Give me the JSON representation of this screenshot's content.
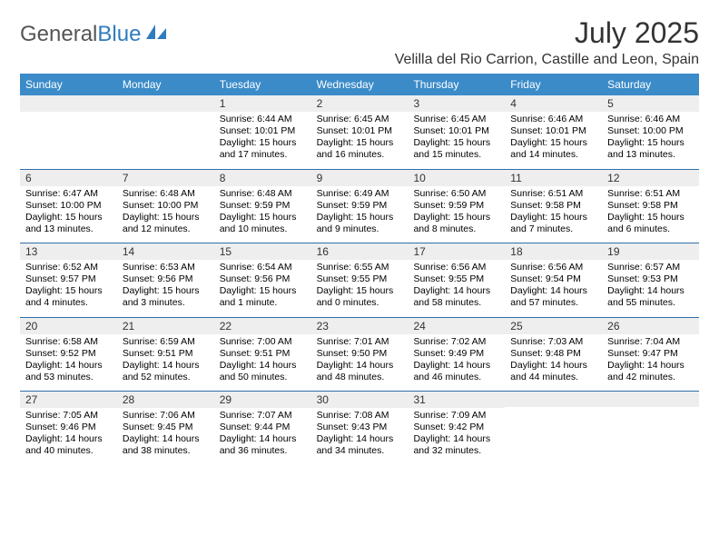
{
  "header": {
    "logo_general": "General",
    "logo_blue": "Blue",
    "month_title": "July 2025",
    "location": "Velilla del Rio Carrion, Castille and Leon, Spain"
  },
  "colors": {
    "header_bar": "#3b8bc9",
    "row_divider": "#2f6fa8",
    "daynum_bg": "#eeeeee",
    "logo_accent": "#2f7bbf"
  },
  "weekdays": [
    "Sunday",
    "Monday",
    "Tuesday",
    "Wednesday",
    "Thursday",
    "Friday",
    "Saturday"
  ],
  "weeks": [
    [
      {
        "n": "",
        "sunrise": "",
        "sunset": "",
        "day1": "",
        "day2": ""
      },
      {
        "n": "",
        "sunrise": "",
        "sunset": "",
        "day1": "",
        "day2": ""
      },
      {
        "n": "1",
        "sunrise": "Sunrise: 6:44 AM",
        "sunset": "Sunset: 10:01 PM",
        "day1": "Daylight: 15 hours",
        "day2": "and 17 minutes."
      },
      {
        "n": "2",
        "sunrise": "Sunrise: 6:45 AM",
        "sunset": "Sunset: 10:01 PM",
        "day1": "Daylight: 15 hours",
        "day2": "and 16 minutes."
      },
      {
        "n": "3",
        "sunrise": "Sunrise: 6:45 AM",
        "sunset": "Sunset: 10:01 PM",
        "day1": "Daylight: 15 hours",
        "day2": "and 15 minutes."
      },
      {
        "n": "4",
        "sunrise": "Sunrise: 6:46 AM",
        "sunset": "Sunset: 10:01 PM",
        "day1": "Daylight: 15 hours",
        "day2": "and 14 minutes."
      },
      {
        "n": "5",
        "sunrise": "Sunrise: 6:46 AM",
        "sunset": "Sunset: 10:00 PM",
        "day1": "Daylight: 15 hours",
        "day2": "and 13 minutes."
      }
    ],
    [
      {
        "n": "6",
        "sunrise": "Sunrise: 6:47 AM",
        "sunset": "Sunset: 10:00 PM",
        "day1": "Daylight: 15 hours",
        "day2": "and 13 minutes."
      },
      {
        "n": "7",
        "sunrise": "Sunrise: 6:48 AM",
        "sunset": "Sunset: 10:00 PM",
        "day1": "Daylight: 15 hours",
        "day2": "and 12 minutes."
      },
      {
        "n": "8",
        "sunrise": "Sunrise: 6:48 AM",
        "sunset": "Sunset: 9:59 PM",
        "day1": "Daylight: 15 hours",
        "day2": "and 10 minutes."
      },
      {
        "n": "9",
        "sunrise": "Sunrise: 6:49 AM",
        "sunset": "Sunset: 9:59 PM",
        "day1": "Daylight: 15 hours",
        "day2": "and 9 minutes."
      },
      {
        "n": "10",
        "sunrise": "Sunrise: 6:50 AM",
        "sunset": "Sunset: 9:59 PM",
        "day1": "Daylight: 15 hours",
        "day2": "and 8 minutes."
      },
      {
        "n": "11",
        "sunrise": "Sunrise: 6:51 AM",
        "sunset": "Sunset: 9:58 PM",
        "day1": "Daylight: 15 hours",
        "day2": "and 7 minutes."
      },
      {
        "n": "12",
        "sunrise": "Sunrise: 6:51 AM",
        "sunset": "Sunset: 9:58 PM",
        "day1": "Daylight: 15 hours",
        "day2": "and 6 minutes."
      }
    ],
    [
      {
        "n": "13",
        "sunrise": "Sunrise: 6:52 AM",
        "sunset": "Sunset: 9:57 PM",
        "day1": "Daylight: 15 hours",
        "day2": "and 4 minutes."
      },
      {
        "n": "14",
        "sunrise": "Sunrise: 6:53 AM",
        "sunset": "Sunset: 9:56 PM",
        "day1": "Daylight: 15 hours",
        "day2": "and 3 minutes."
      },
      {
        "n": "15",
        "sunrise": "Sunrise: 6:54 AM",
        "sunset": "Sunset: 9:56 PM",
        "day1": "Daylight: 15 hours",
        "day2": "and 1 minute."
      },
      {
        "n": "16",
        "sunrise": "Sunrise: 6:55 AM",
        "sunset": "Sunset: 9:55 PM",
        "day1": "Daylight: 15 hours",
        "day2": "and 0 minutes."
      },
      {
        "n": "17",
        "sunrise": "Sunrise: 6:56 AM",
        "sunset": "Sunset: 9:55 PM",
        "day1": "Daylight: 14 hours",
        "day2": "and 58 minutes."
      },
      {
        "n": "18",
        "sunrise": "Sunrise: 6:56 AM",
        "sunset": "Sunset: 9:54 PM",
        "day1": "Daylight: 14 hours",
        "day2": "and 57 minutes."
      },
      {
        "n": "19",
        "sunrise": "Sunrise: 6:57 AM",
        "sunset": "Sunset: 9:53 PM",
        "day1": "Daylight: 14 hours",
        "day2": "and 55 minutes."
      }
    ],
    [
      {
        "n": "20",
        "sunrise": "Sunrise: 6:58 AM",
        "sunset": "Sunset: 9:52 PM",
        "day1": "Daylight: 14 hours",
        "day2": "and 53 minutes."
      },
      {
        "n": "21",
        "sunrise": "Sunrise: 6:59 AM",
        "sunset": "Sunset: 9:51 PM",
        "day1": "Daylight: 14 hours",
        "day2": "and 52 minutes."
      },
      {
        "n": "22",
        "sunrise": "Sunrise: 7:00 AM",
        "sunset": "Sunset: 9:51 PM",
        "day1": "Daylight: 14 hours",
        "day2": "and 50 minutes."
      },
      {
        "n": "23",
        "sunrise": "Sunrise: 7:01 AM",
        "sunset": "Sunset: 9:50 PM",
        "day1": "Daylight: 14 hours",
        "day2": "and 48 minutes."
      },
      {
        "n": "24",
        "sunrise": "Sunrise: 7:02 AM",
        "sunset": "Sunset: 9:49 PM",
        "day1": "Daylight: 14 hours",
        "day2": "and 46 minutes."
      },
      {
        "n": "25",
        "sunrise": "Sunrise: 7:03 AM",
        "sunset": "Sunset: 9:48 PM",
        "day1": "Daylight: 14 hours",
        "day2": "and 44 minutes."
      },
      {
        "n": "26",
        "sunrise": "Sunrise: 7:04 AM",
        "sunset": "Sunset: 9:47 PM",
        "day1": "Daylight: 14 hours",
        "day2": "and 42 minutes."
      }
    ],
    [
      {
        "n": "27",
        "sunrise": "Sunrise: 7:05 AM",
        "sunset": "Sunset: 9:46 PM",
        "day1": "Daylight: 14 hours",
        "day2": "and 40 minutes."
      },
      {
        "n": "28",
        "sunrise": "Sunrise: 7:06 AM",
        "sunset": "Sunset: 9:45 PM",
        "day1": "Daylight: 14 hours",
        "day2": "and 38 minutes."
      },
      {
        "n": "29",
        "sunrise": "Sunrise: 7:07 AM",
        "sunset": "Sunset: 9:44 PM",
        "day1": "Daylight: 14 hours",
        "day2": "and 36 minutes."
      },
      {
        "n": "30",
        "sunrise": "Sunrise: 7:08 AM",
        "sunset": "Sunset: 9:43 PM",
        "day1": "Daylight: 14 hours",
        "day2": "and 34 minutes."
      },
      {
        "n": "31",
        "sunrise": "Sunrise: 7:09 AM",
        "sunset": "Sunset: 9:42 PM",
        "day1": "Daylight: 14 hours",
        "day2": "and 32 minutes."
      },
      {
        "n": "",
        "sunrise": "",
        "sunset": "",
        "day1": "",
        "day2": ""
      },
      {
        "n": "",
        "sunrise": "",
        "sunset": "",
        "day1": "",
        "day2": ""
      }
    ]
  ]
}
